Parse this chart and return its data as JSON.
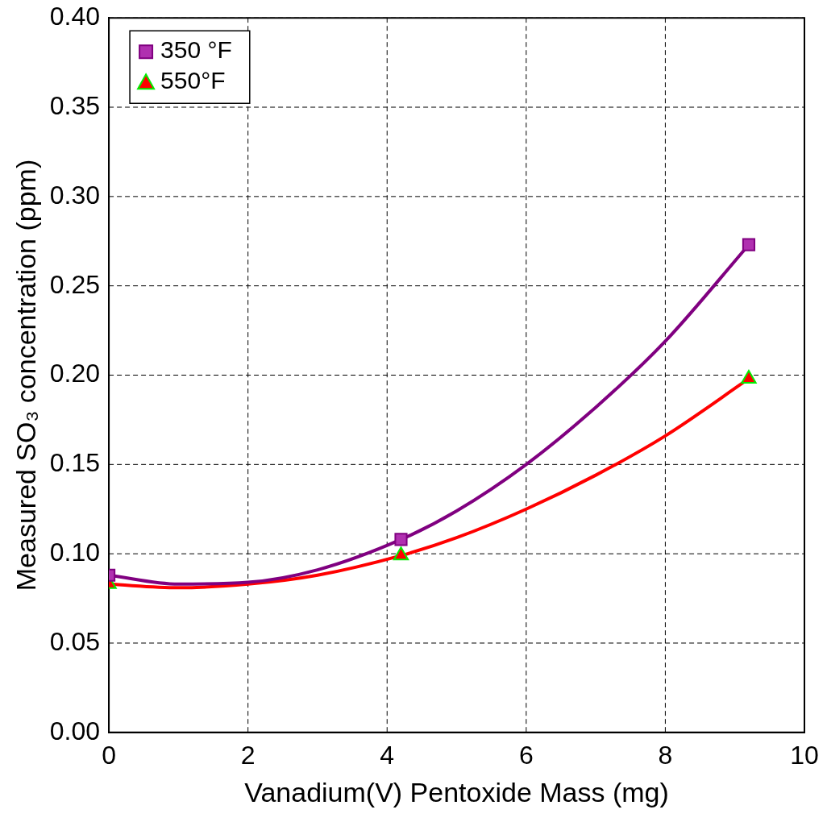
{
  "chart_data": {
    "type": "scatter",
    "xlabel": "Vanadium(V) Pentoxide Mass (mg)",
    "ylabel": "Measured SO₃ concentration (ppm)",
    "xlim": [
      0,
      10
    ],
    "xticks": [
      0,
      2,
      4,
      6,
      8,
      10
    ],
    "ylim": [
      0,
      0.4
    ],
    "yticks": [
      {
        "value": 0,
        "label": "0.00"
      },
      0.05,
      {
        "value": 0.1,
        "label": "0.10"
      },
      0.15,
      {
        "value": 0.2,
        "label": "0.20"
      },
      0.25,
      {
        "value": 0.3,
        "label": "0.30"
      },
      0.35,
      {
        "value": 0.4,
        "label": "0.40"
      }
    ],
    "grid": true,
    "legend": "top left",
    "series": [
      {
        "type": "line",
        "marker": "none",
        "color": "#800080",
        "x": [
          0,
          1,
          2,
          3,
          4.2,
          5,
          6,
          7,
          8,
          9.2
        ],
        "values": [
          0.088,
          0.083,
          0.084,
          0.091,
          0.108,
          0.124,
          0.15,
          0.182,
          0.219,
          0.273
        ]
      },
      {
        "type": "line",
        "marker": "none",
        "color": "#ff0000",
        "x": [
          0,
          1,
          2,
          3,
          4.2,
          5,
          6,
          7,
          8,
          9.2
        ],
        "values": [
          0.083,
          0.081,
          0.083,
          0.088,
          0.099,
          0.109,
          0.125,
          0.144,
          0.166,
          0.198
        ]
      },
      {
        "name": "350 °F",
        "marker": "square",
        "color": "#b030b0",
        "x": [
          0,
          4.2,
          9.2
        ],
        "values": [
          0.088,
          0.108,
          0.273
        ]
      },
      {
        "name": "550°F",
        "marker": "triangle",
        "color": "#ff0000",
        "x": [
          0,
          4.2,
          9.2
        ],
        "values": [
          0.083,
          0.099,
          0.198
        ]
      }
    ]
  }
}
